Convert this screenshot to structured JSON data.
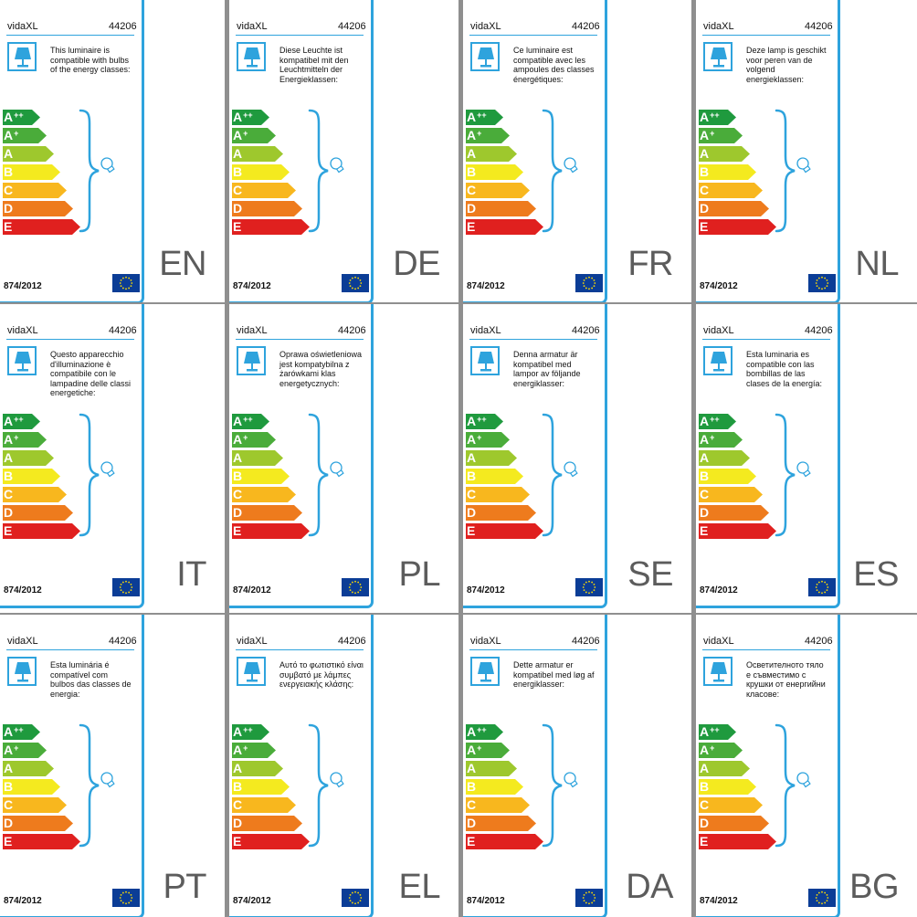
{
  "label": {
    "brand": "vidaXL",
    "product_code": "44206",
    "regulation": "874/2012"
  },
  "energy_classes": [
    {
      "letter": "A",
      "sup": "++",
      "color": "#1f9a3e"
    },
    {
      "letter": "A",
      "sup": "+",
      "color": "#4aac3a"
    },
    {
      "letter": "A",
      "sup": "",
      "color": "#9ec82d"
    },
    {
      "letter": "B",
      "sup": "",
      "color": "#f4ea1f"
    },
    {
      "letter": "C",
      "sup": "",
      "color": "#f8b71e"
    },
    {
      "letter": "D",
      "sup": "",
      "color": "#ee7b1d"
    },
    {
      "letter": "E",
      "sup": "",
      "color": "#e0201f"
    }
  ],
  "accent_color": "#2ea3dd",
  "icons": {
    "lamp": "table-lamp-icon",
    "bulb": "light-bulb-icon",
    "flag": "eu-flag-icon"
  },
  "panels": [
    {
      "lang": "EN",
      "text": "This luminaire is compatible with bulbs of the energy classes:"
    },
    {
      "lang": "DE",
      "text": "Diese Leuchte ist kompatibel mit den Leuchtmitteln der Energieklassen:"
    },
    {
      "lang": "FR",
      "text": "Ce luminaire est compatible avec les ampoules des classes énergétiques:"
    },
    {
      "lang": "NL",
      "text": "Deze lamp is geschikt voor peren van de volgend energieklassen:"
    },
    {
      "lang": "IT",
      "text": "Questo apparecchio d'illuminazione è compatibile con le lampadine delle classi energetiche:"
    },
    {
      "lang": "PL",
      "text": "Oprawa oświetleniowa jest kompatybilna z żarówkami klas energetycznych:"
    },
    {
      "lang": "SE",
      "text": "Denna armatur är kompatibel med lampor av följande energiklasser:"
    },
    {
      "lang": "ES",
      "text": "Esta luminaria es compatible con las bombillas de las clases de la energía:"
    },
    {
      "lang": "PT",
      "text": "Esta luminária é compatível com bulbos das classes de energia:"
    },
    {
      "lang": "EL",
      "text": "Αυτό το φωτιστικό είναι συμβατό με λάμπες ενεργειακής κλάσης:"
    },
    {
      "lang": "DA",
      "text": "Dette armatur er kompatibel med løg af energiklasser:"
    },
    {
      "lang": "BG",
      "text": "Осветителното тяло е съвместимо с крушки от енергийни класове:"
    }
  ]
}
